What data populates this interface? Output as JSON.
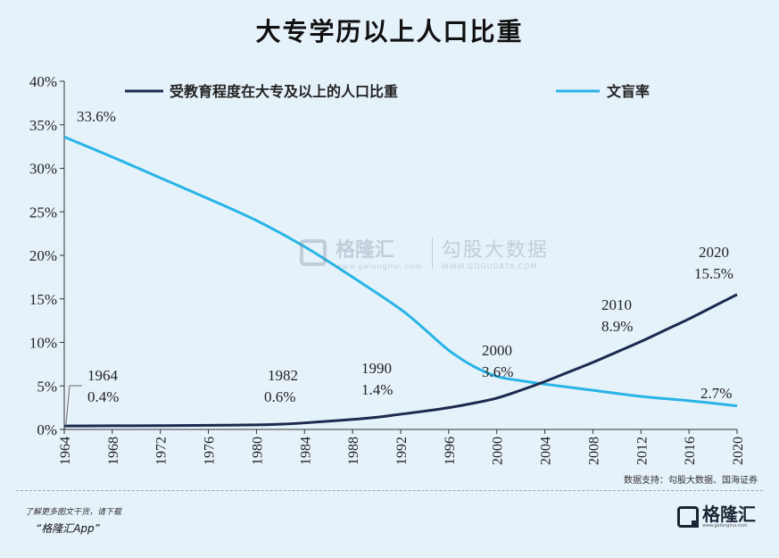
{
  "title": "大专学历以上人口比重",
  "chart_data": {
    "type": "line",
    "x_ticks": [
      1964,
      1968,
      1972,
      1976,
      1980,
      1984,
      1988,
      1992,
      1996,
      2000,
      2004,
      2008,
      2012,
      2016,
      2020
    ],
    "xlim": [
      1964,
      2020
    ],
    "y_ticks": [
      "0%",
      "5%",
      "10%",
      "15%",
      "20%",
      "25%",
      "30%",
      "35%",
      "40%"
    ],
    "ylim": [
      0,
      40
    ],
    "legend_position": "top",
    "series": [
      {
        "name": "受教育程度在大专及以上的人口比重",
        "color": "#1b2a4e",
        "x": [
          1964,
          1968,
          1972,
          1976,
          1980,
          1982,
          1984,
          1986,
          1988,
          1990,
          1992,
          1994,
          1996,
          1998,
          2000,
          2002,
          2004,
          2006,
          2008,
          2010,
          2012,
          2014,
          2016,
          2018,
          2020
        ],
        "y": [
          0.4,
          0.42,
          0.44,
          0.47,
          0.52,
          0.6,
          0.75,
          0.95,
          1.15,
          1.4,
          1.75,
          2.1,
          2.5,
          3.0,
          3.6,
          4.5,
          5.5,
          6.6,
          7.7,
          8.9,
          10.1,
          11.4,
          12.7,
          14.1,
          15.5
        ]
      },
      {
        "name": "文盲率",
        "color": "#27b4e6",
        "x": [
          1964,
          1968,
          1972,
          1976,
          1980,
          1984,
          1988,
          1992,
          1994,
          1996,
          1998,
          2000,
          2002,
          2004,
          2008,
          2012,
          2016,
          2020
        ],
        "y": [
          33.6,
          31.3,
          28.9,
          26.5,
          24.0,
          21.0,
          17.5,
          13.8,
          11.5,
          9.1,
          7.3,
          6.1,
          5.6,
          5.2,
          4.5,
          3.8,
          3.3,
          2.7
        ]
      }
    ],
    "annotations": [
      {
        "year": "1964",
        "value": "0.4%"
      },
      {
        "year": "1982",
        "value": "0.6%"
      },
      {
        "year": "1990",
        "value": "1.4%"
      },
      {
        "year": "2000",
        "value": "3.6%"
      },
      {
        "year": "2010",
        "value": "8.9%"
      },
      {
        "year": "2020",
        "value": "15.5%"
      },
      {
        "year": "",
        "value": "33.6%"
      },
      {
        "year": "",
        "value": "2.7%"
      }
    ]
  },
  "source": "数据支持：勾股大数据、国海证券",
  "watermark": {
    "brand": "格隆汇",
    "brand_url": "www.gelonghui.com",
    "partner": "勾股大数据",
    "partner_url": "WWW.GOGUDATA.COM"
  },
  "footer": {
    "promo_line1": "了解更多图文干货，请下载",
    "promo_line2": "“格隆汇App”",
    "logo_text": "格隆汇",
    "logo_sub": "www.gelonghui.com"
  }
}
